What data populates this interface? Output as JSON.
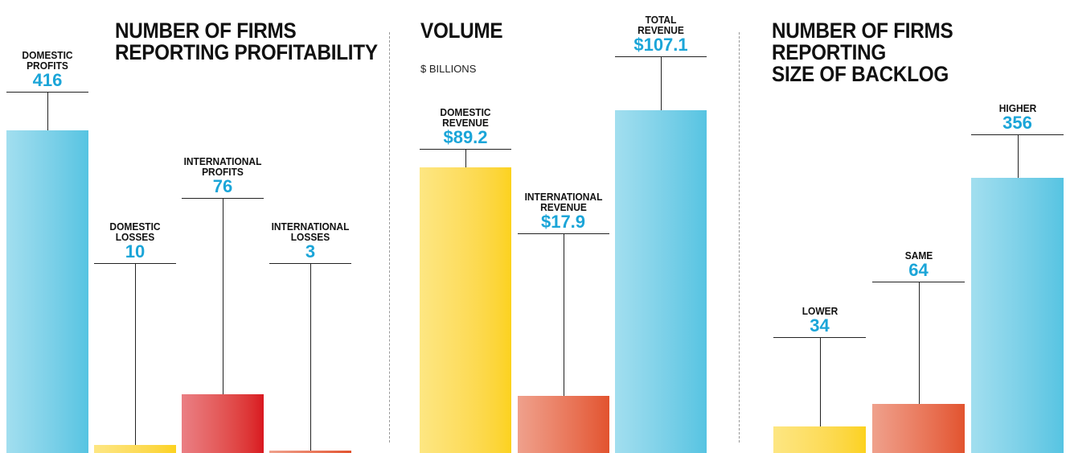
{
  "chart_data": [
    {
      "type": "bar",
      "title": "NUMBER OF FIRMS\nREPORTING PROFITABILITY",
      "categories": [
        "DOMESTIC\nPROFITS",
        "DOMESTIC\nLOSSES",
        "INTERNATIONAL\nPROFITS",
        "INTERNATIONAL\nLOSSES"
      ],
      "values": [
        416,
        10,
        76,
        3
      ],
      "colors": [
        "#56c4e2",
        "#fcd21c",
        "#d9161f",
        "#e2532e"
      ]
    },
    {
      "type": "bar",
      "title": "VOLUME",
      "subtitle": "$ BILLIONS",
      "categories": [
        "DOMESTIC\nREVENUE",
        "INTERNATIONAL\nREVENUE",
        "TOTAL\nREVENUE"
      ],
      "values": [
        89.2,
        17.9,
        107.1
      ],
      "value_labels": [
        "$89.2",
        "$17.9",
        "$107.1"
      ],
      "colors": [
        "#fcd21c",
        "#e2532e",
        "#56c4e2"
      ]
    },
    {
      "type": "bar",
      "title": "NUMBER OF FIRMS\nREPORTING\nSIZE OF BACKLOG",
      "categories": [
        "LOWER",
        "SAME",
        "HIGHER"
      ],
      "values": [
        34,
        64,
        356
      ],
      "colors": [
        "#fcd21c",
        "#e2532e",
        "#56c4e2"
      ]
    }
  ]
}
